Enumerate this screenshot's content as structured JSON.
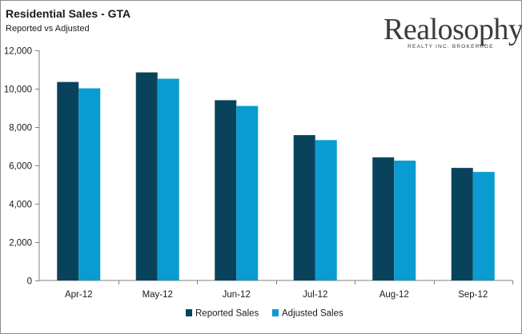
{
  "header": {
    "title": "Residential Sales - GTA",
    "subtitle": "Reported vs Adjusted"
  },
  "logo": {
    "name": "Realosophy",
    "tagline": "REALTY INC. BROKERAGE"
  },
  "chart_data": {
    "type": "bar",
    "title": "Residential Sales - GTA",
    "subtitle": "Reported vs Adjusted",
    "categories": [
      "Apr-12",
      "May-12",
      "Jun-12",
      "Jul-12",
      "Aug-12",
      "Sep-12"
    ],
    "series": [
      {
        "name": "Reported Sales",
        "color": "#08435b",
        "values": [
          10350,
          10850,
          9400,
          7580,
          6420,
          5870
        ]
      },
      {
        "name": "Adjusted Sales",
        "color": "#0a9bd0",
        "values": [
          10020,
          10520,
          9100,
          7320,
          6250,
          5660
        ]
      }
    ],
    "ylim": [
      0,
      12000
    ],
    "yticks": [
      0,
      2000,
      4000,
      6000,
      8000,
      10000,
      12000
    ],
    "ytick_labels": [
      "0",
      "2,000",
      "4,000",
      "6,000",
      "8,000",
      "10,000",
      "12,000"
    ],
    "xlabel": "",
    "ylabel": "",
    "grid": false,
    "legend_position": "bottom"
  }
}
